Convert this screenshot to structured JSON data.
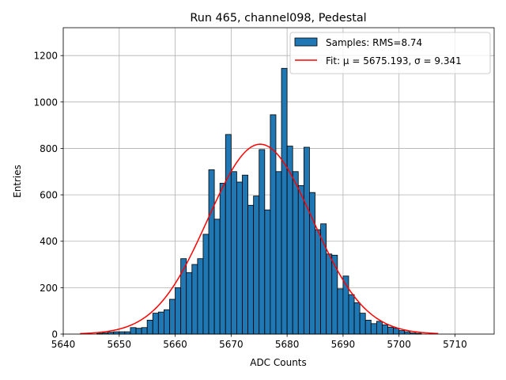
{
  "chart_data": {
    "type": "bar",
    "title": "Run 465, channel098, Pedestal",
    "xlabel": "ADC Counts",
    "ylabel": "Entries",
    "xlim": [
      5640,
      5717
    ],
    "ylim": [
      0,
      1320
    ],
    "xticks": [
      5640,
      5650,
      5660,
      5670,
      5680,
      5690,
      5700,
      5710
    ],
    "yticks": [
      0,
      200,
      400,
      600,
      800,
      1000,
      1200
    ],
    "grid": true,
    "legend_position": "top-right",
    "bin_width": 1,
    "colors": {
      "bars": "#1f77b4",
      "bar_edge": "#000000",
      "fit": "#ff0000",
      "grid": "#b0b0b0"
    },
    "series": [
      {
        "name": "Samples: RMS=8.74",
        "kind": "histogram",
        "bin_starts": [
          5646,
          5647,
          5648,
          5649,
          5650,
          5651,
          5652,
          5653,
          5654,
          5655,
          5656,
          5657,
          5658,
          5659,
          5660,
          5661,
          5662,
          5663,
          5664,
          5665,
          5666,
          5667,
          5668,
          5669,
          5670,
          5671,
          5672,
          5673,
          5674,
          5675,
          5676,
          5677,
          5678,
          5679,
          5680,
          5681,
          5682,
          5683,
          5684,
          5685,
          5686,
          5687,
          5688,
          5689,
          5690,
          5691,
          5692,
          5693,
          5694,
          5695,
          5696,
          5697,
          5698,
          5699,
          5700,
          5701,
          5702,
          5703
        ],
        "counts": [
          3,
          5,
          8,
          10,
          10,
          10,
          28,
          25,
          28,
          60,
          90,
          95,
          105,
          150,
          200,
          325,
          265,
          300,
          325,
          430,
          708,
          495,
          650,
          860,
          700,
          655,
          685,
          555,
          595,
          795,
          535,
          945,
          700,
          1145,
          810,
          700,
          640,
          805,
          610,
          450,
          475,
          345,
          340,
          195,
          250,
          170,
          135,
          90,
          60,
          45,
          55,
          40,
          30,
          25,
          15,
          10,
          5,
          3
        ]
      },
      {
        "name": "Fit: μ = 5675.193, σ = 9.341",
        "kind": "gaussian",
        "mu": 5675.193,
        "sigma": 9.341,
        "amplitude": 818,
        "x_range": [
          5643,
          5707
        ]
      }
    ]
  }
}
